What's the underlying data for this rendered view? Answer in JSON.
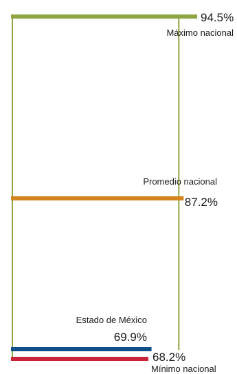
{
  "chart_data": {
    "type": "bar",
    "orientation": "horizontal",
    "bars": [
      {
        "key": "maximo",
        "label": "Máximo nacional",
        "value": 94.5,
        "value_text": "94.5%",
        "color": "#8ea642"
      },
      {
        "key": "promedio",
        "label": "Promedio nacional",
        "value": 87.2,
        "value_text": "87.2%",
        "color": "#d4841e"
      },
      {
        "key": "estado",
        "label": "Estado de México",
        "value": 69.9,
        "value_text": "69.9%",
        "color": "#0e4f8a"
      },
      {
        "key": "minimo",
        "label": "Mínimo nacional",
        "value": 68.2,
        "value_text": "68.2%",
        "color": "#c8243a"
      }
    ],
    "range_color": "#8ea642",
    "grid": false
  }
}
